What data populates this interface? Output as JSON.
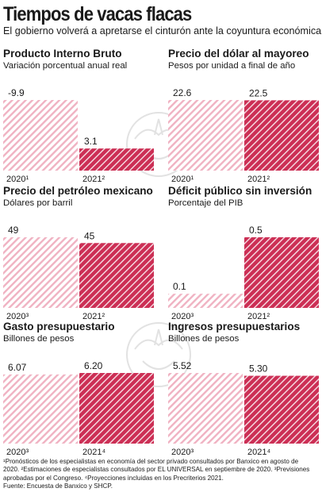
{
  "title": "Tiempos de vacas flacas",
  "subtitle": "El gobierno volverá a apretarse el cinturón ante la coyuntura económica.",
  "colors": {
    "solid": "#cc2f55",
    "hatch_light": "#f0b2c2",
    "hatch_dark": "#ffffff",
    "text": "#1a1a1a"
  },
  "chart_data": [
    {
      "type": "bar",
      "title": "Producto Interno Bruto",
      "subtitle": "Variación porcentual anual real",
      "categories": [
        "2020¹",
        "2021²"
      ],
      "values": [
        -9.9,
        3.1
      ],
      "value_labels": [
        "-9.9",
        "3.1"
      ],
      "styles": [
        "hatched",
        "solid"
      ]
    },
    {
      "type": "bar",
      "title": "Precio del dólar al mayoreo",
      "subtitle": "Pesos por unidad a final de año",
      "categories": [
        "2020¹",
        "2021²"
      ],
      "values": [
        22.6,
        22.5
      ],
      "value_labels": [
        "22.6",
        "22.5"
      ],
      "styles": [
        "hatched",
        "solid"
      ]
    },
    {
      "type": "bar",
      "title": "Precio del petróleo mexicano",
      "subtitle": "Dólares por barril",
      "categories": [
        "2020³",
        "2021²"
      ],
      "values": [
        49,
        45
      ],
      "value_labels": [
        "49",
        "45"
      ],
      "styles": [
        "hatched",
        "solid"
      ]
    },
    {
      "type": "bar",
      "title": "Déficit público sin inversión",
      "subtitle": "Porcentaje del PIB",
      "categories": [
        "2020³",
        "2021²"
      ],
      "values": [
        0.1,
        0.5
      ],
      "value_labels": [
        "0.1",
        "0.5"
      ],
      "styles": [
        "hatched",
        "solid"
      ]
    },
    {
      "type": "bar",
      "title": "Gasto presupuestario",
      "subtitle": "Billones de pesos",
      "categories": [
        "2020³",
        "2021⁴"
      ],
      "values": [
        6.07,
        6.2
      ],
      "value_labels": [
        "6.07",
        "6.20"
      ],
      "styles": [
        "hatched",
        "solid"
      ]
    },
    {
      "type": "bar",
      "title": "Ingresos presupuestarios",
      "subtitle": "Billones de pesos",
      "categories": [
        "2020³",
        "2021⁴"
      ],
      "values": [
        5.52,
        5.3
      ],
      "value_labels": [
        "5.52",
        "5.30"
      ],
      "styles": [
        "hatched",
        "solid"
      ]
    }
  ],
  "footnotes": [
    "¹Pronósticos de los especialistas en economía del sector privado consultados por Banxico en agosto de",
    "2020. ²Estimaciones de especialistas consultados por EL UNIVERSAL en septiembre de 2020. ³Previsiones",
    "aprobadas por el Congreso. ⁴Proyecciones incluidas en los Precriterios 2021.",
    "Fuente: Encuesta de Banxico y SHCP."
  ]
}
